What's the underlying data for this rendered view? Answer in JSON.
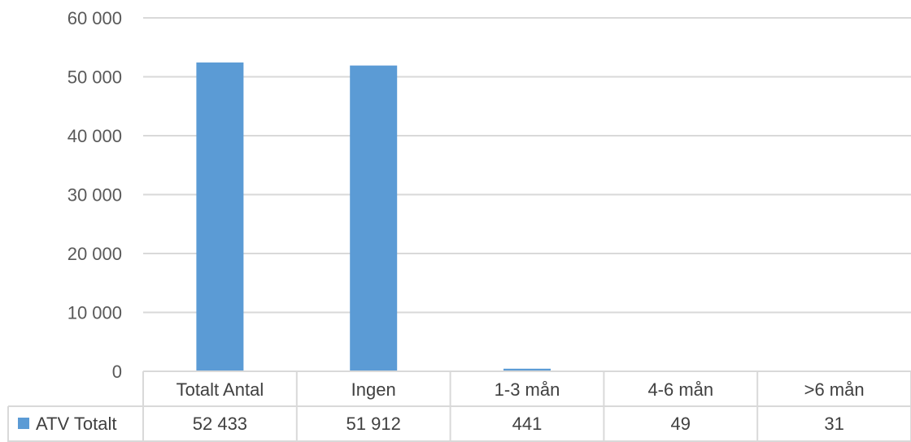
{
  "chart_data": {
    "type": "bar",
    "title": "",
    "xlabel": "",
    "ylabel": "",
    "categories": [
      "Totalt Antal",
      "Ingen",
      "1-3 mån",
      "4-6 mån",
      ">6 mån"
    ],
    "series": [
      {
        "name": "ATV Totalt",
        "values": [
          52433,
          51912,
          441,
          49,
          31
        ],
        "value_labels": [
          "52 433",
          "51 912",
          "441",
          "49",
          "31"
        ],
        "color": "#5b9bd5"
      }
    ],
    "ylim": [
      0,
      60000
    ],
    "yticks": [
      0,
      10000,
      20000,
      30000,
      40000,
      50000,
      60000
    ],
    "ytick_labels": [
      "0",
      "10 000",
      "20 000",
      "30 000",
      "40 000",
      "50 000",
      "60 000"
    ],
    "grid": true,
    "legend_placement": "data-table",
    "has_data_table": true
  }
}
